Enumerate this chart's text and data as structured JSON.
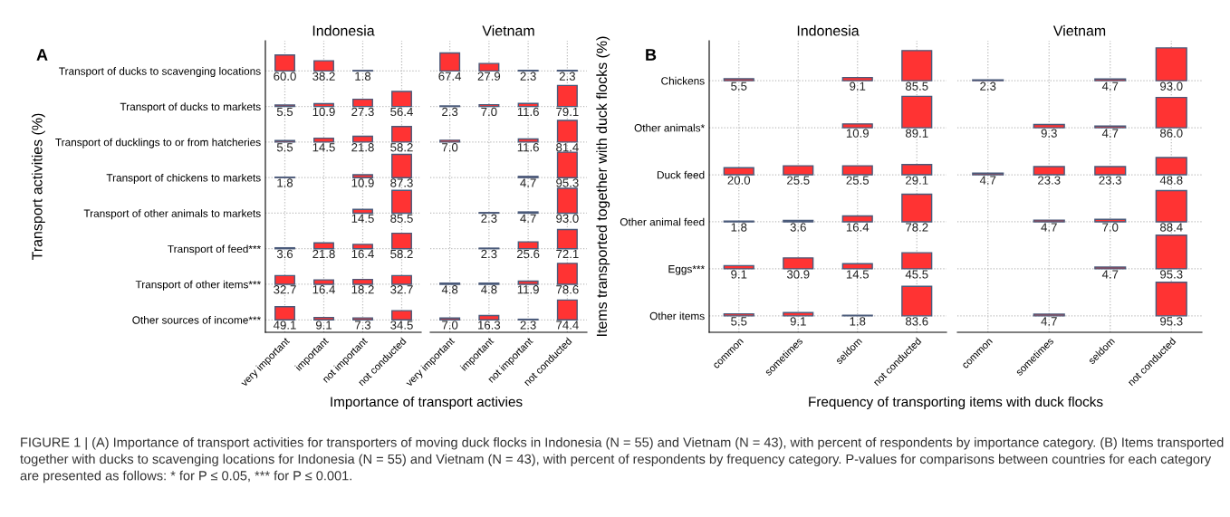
{
  "chart_data": [
    {
      "type": "heatmap",
      "title": "A",
      "ylabel": "Transport activities (%)",
      "xlabel": "Importance of transport activies",
      "annotations": [
        "Indonesia",
        "Vietnam",
        "FIGURE 1 | (A) Importance of transport activities for transporters of moving duck flocks in Indonesia (N = 55) and Vietnam (N = 43), with percent of respondents by importance category. (B) Items transported together with ducks to scavenging locations for Indonesia (N = 55) and Vietnam (N = 43), with percent of respondents by frequency category. P-values for comparisons between countries for each category are presented as follows: * for P ≤ 0.05, *** for P ≤ 0.001."
      ],
      "categories": [
        "very important",
        "important",
        "not important",
        "not conducted",
        "very important",
        "important",
        "not important",
        "not conducted"
      ],
      "y_categories": [
        "Transport of ducks to scavenging locations",
        "Transport of ducks to markets",
        "Transport of ducklings to or from hatcheries",
        "Transport of chickens to markets",
        "Transport of other animals to markets",
        "Transport of feed***",
        "Transport of other items***",
        "Other sources of income***"
      ],
      "cells": [
        [
          60.0,
          38.2,
          1.8,
          null,
          67.4,
          27.9,
          2.3,
          2.3
        ],
        [
          5.5,
          10.9,
          27.3,
          56.4,
          2.3,
          7.0,
          11.6,
          79.1
        ],
        [
          5.5,
          14.5,
          21.8,
          58.2,
          7.0,
          null,
          11.6,
          81.4
        ],
        [
          1.8,
          null,
          10.9,
          87.3,
          null,
          null,
          4.7,
          95.3
        ],
        [
          null,
          null,
          14.5,
          85.5,
          null,
          2.3,
          4.7,
          93.0
        ],
        [
          3.6,
          21.8,
          16.4,
          58.2,
          null,
          2.3,
          25.6,
          72.1
        ],
        [
          32.7,
          16.4,
          18.2,
          32.7,
          4.8,
          4.8,
          11.9,
          78.6
        ],
        [
          49.1,
          9.1,
          7.3,
          34.5,
          7.0,
          16.3,
          2.3,
          74.4
        ]
      ],
      "cell_labels": [
        [
          "60.0",
          "38.2",
          "1.8",
          null,
          "67.4",
          "27.9",
          "2.3",
          "2.3"
        ],
        [
          "5.5",
          "10.9",
          "27.3",
          "56.4",
          "2.3",
          "7.0",
          "11.6",
          "79.1"
        ],
        [
          "5.5",
          "14.5",
          "21.8",
          "58.2",
          "7.0",
          null,
          "11.6",
          "81.4"
        ],
        [
          "1.8",
          null,
          "10.9",
          "87.3",
          null,
          null,
          "4.7",
          "95.3"
        ],
        [
          null,
          null,
          "14.5",
          "85.5",
          null,
          "2.3",
          "4.7",
          "93.0"
        ],
        [
          "3.6",
          "21.8",
          "16.4",
          "58.2",
          null,
          "2.3",
          "25.6",
          "72.1"
        ],
        [
          "32.7",
          "16.4",
          "18.2",
          "32.7",
          "4.8",
          "4.8",
          "11.9",
          "78.6"
        ],
        [
          "49.1",
          "9.1",
          "7.3",
          "34.5",
          "7.0",
          "16.3",
          "2.3",
          "74.4"
        ]
      ],
      "color": "#ff3333",
      "grid": true
    },
    {
      "type": "heatmap",
      "title": "B",
      "ylabel": "Items transported together with duck flocks (%)",
      "xlabel": "Frequency of transporting items with duck flocks",
      "annotations": [
        "Indonesia",
        "Vietnam"
      ],
      "categories": [
        "common",
        "sometimes",
        "seldom",
        "not conducted",
        "common",
        "sometimes",
        "seldom",
        "not conducted"
      ],
      "y_categories": [
        "Chickens",
        "Other animals*",
        "Duck feed",
        "Other animal feed",
        "Eggs***",
        "Other items"
      ],
      "cells": [
        [
          5.5,
          null,
          9.1,
          85.5,
          2.3,
          null,
          4.7,
          93.0
        ],
        [
          null,
          null,
          10.9,
          89.1,
          null,
          9.3,
          4.7,
          86.0
        ],
        [
          20.0,
          25.5,
          25.5,
          29.1,
          4.7,
          23.3,
          23.3,
          48.8
        ],
        [
          1.8,
          3.6,
          16.4,
          78.2,
          null,
          4.7,
          7.0,
          88.4
        ],
        [
          9.1,
          30.9,
          14.5,
          45.5,
          null,
          null,
          4.7,
          95.3
        ],
        [
          5.5,
          9.1,
          1.8,
          83.6,
          null,
          4.7,
          null,
          95.3
        ]
      ],
      "cell_labels": [
        [
          "5.5",
          null,
          "9.1",
          "85.5",
          "2.3",
          null,
          "4.7",
          "93.0"
        ],
        [
          null,
          null,
          "10.9",
          "89.1",
          null,
          "9.3",
          "4.7",
          "86.0"
        ],
        [
          "20.0",
          "25.5",
          "25.5",
          "29.1",
          "4.7",
          "23.3",
          "23.3",
          "48.8"
        ],
        [
          "1.8",
          "3.6",
          "16.4",
          "78.2",
          null,
          "4.7",
          "7.0",
          "88.4"
        ],
        [
          "9.1",
          "30.9",
          "14.5",
          "45.5",
          null,
          null,
          "4.7",
          "95.3"
        ],
        [
          "5.5",
          "9.1",
          "1.8",
          "83.6",
          null,
          "4.7",
          null,
          "95.3"
        ]
      ],
      "color": "#ff3333",
      "grid": true
    }
  ]
}
